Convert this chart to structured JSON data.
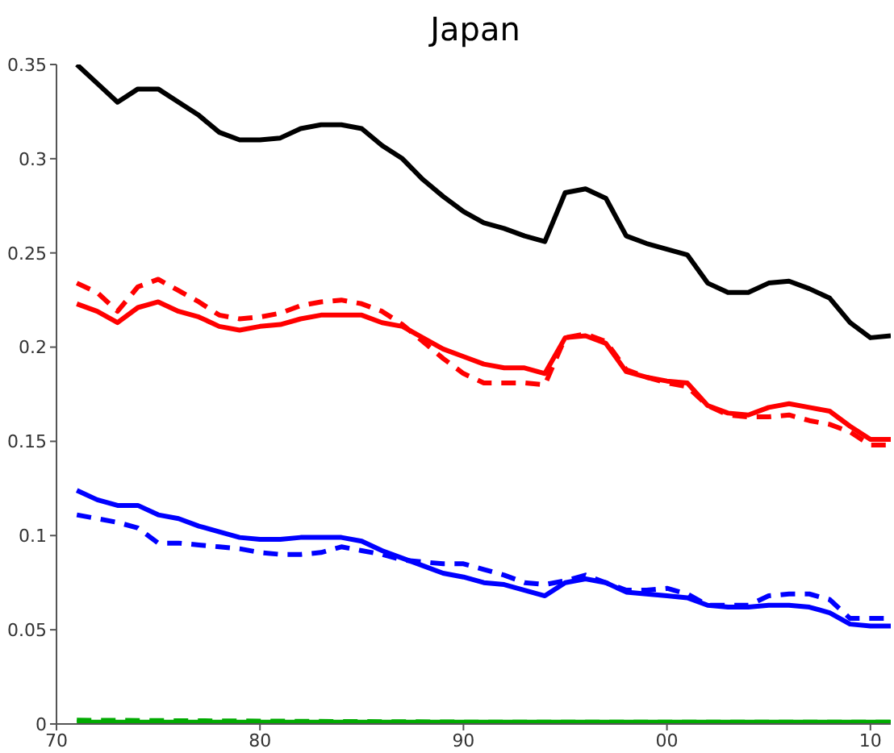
{
  "chart_data": {
    "type": "line",
    "title": "Japan",
    "x": [
      1971,
      1972,
      1973,
      1974,
      1975,
      1976,
      1977,
      1978,
      1979,
      1980,
      1981,
      1982,
      1983,
      1984,
      1985,
      1986,
      1987,
      1988,
      1989,
      1990,
      1991,
      1992,
      1993,
      1994,
      1995,
      1996,
      1997,
      1998,
      1999,
      2000,
      2001,
      2002,
      2003,
      2004,
      2005,
      2006,
      2007,
      2008,
      2009,
      2010,
      2011
    ],
    "series": [
      {
        "color": "#000000",
        "line_style": "solid",
        "values": [
          0.35,
          0.34,
          0.33,
          0.337,
          0.337,
          0.33,
          0.323,
          0.314,
          0.31,
          0.31,
          0.311,
          0.316,
          0.318,
          0.318,
          0.316,
          0.307,
          0.3,
          0.289,
          0.28,
          0.272,
          0.266,
          0.263,
          0.259,
          0.256,
          0.282,
          0.284,
          0.279,
          0.259,
          0.255,
          0.252,
          0.249,
          0.234,
          0.229,
          0.229,
          0.234,
          0.235,
          0.231,
          0.226,
          0.213,
          0.205,
          0.206
        ]
      },
      {
        "color": "#ff0000",
        "line_style": "solid",
        "values": [
          0.223,
          0.219,
          0.213,
          0.221,
          0.224,
          0.219,
          0.216,
          0.211,
          0.209,
          0.211,
          0.212,
          0.215,
          0.217,
          0.217,
          0.217,
          0.213,
          0.211,
          0.205,
          0.199,
          0.195,
          0.191,
          0.189,
          0.189,
          0.186,
          0.205,
          0.206,
          0.202,
          0.187,
          0.184,
          0.182,
          0.181,
          0.169,
          0.165,
          0.164,
          0.168,
          0.17,
          0.168,
          0.166,
          0.158,
          0.151,
          0.151
        ]
      },
      {
        "color": "#ff0000",
        "line_style": "dashed",
        "values": [
          0.234,
          0.229,
          0.219,
          0.232,
          0.236,
          0.23,
          0.224,
          0.217,
          0.215,
          0.216,
          0.218,
          0.222,
          0.224,
          0.225,
          0.223,
          0.219,
          0.212,
          0.203,
          0.194,
          0.186,
          0.181,
          0.181,
          0.181,
          0.18,
          0.205,
          0.207,
          0.203,
          0.188,
          0.184,
          0.181,
          0.179,
          0.169,
          0.164,
          0.163,
          0.163,
          0.164,
          0.161,
          0.159,
          0.155,
          0.148,
          0.148
        ]
      },
      {
        "color": "#0000ff",
        "line_style": "solid",
        "values": [
          0.124,
          0.119,
          0.116,
          0.116,
          0.111,
          0.109,
          0.105,
          0.102,
          0.099,
          0.098,
          0.098,
          0.099,
          0.099,
          0.099,
          0.097,
          0.092,
          0.088,
          0.084,
          0.08,
          0.078,
          0.075,
          0.074,
          0.071,
          0.068,
          0.075,
          0.077,
          0.075,
          0.07,
          0.069,
          0.068,
          0.067,
          0.063,
          0.062,
          0.062,
          0.063,
          0.063,
          0.062,
          0.059,
          0.053,
          0.052,
          0.052
        ]
      },
      {
        "color": "#0000ff",
        "line_style": "dashed",
        "values": [
          0.111,
          0.109,
          0.107,
          0.104,
          0.096,
          0.096,
          0.095,
          0.094,
          0.093,
          0.091,
          0.09,
          0.09,
          0.091,
          0.094,
          0.092,
          0.09,
          0.087,
          0.086,
          0.085,
          0.085,
          0.082,
          0.079,
          0.075,
          0.074,
          0.076,
          0.079,
          0.075,
          0.071,
          0.071,
          0.072,
          0.069,
          0.063,
          0.063,
          0.063,
          0.068,
          0.069,
          0.069,
          0.066,
          0.056,
          0.056,
          0.056
        ]
      },
      {
        "color": "#00aa00",
        "line_style": "solid",
        "x": [
          1971,
          2011
        ],
        "values": [
          0.001,
          0.001
        ]
      },
      {
        "color": "#00aa00",
        "line_style": "dashed",
        "x": [
          1971,
          1990,
          2011
        ],
        "values": [
          0.002,
          0.001,
          0.001
        ]
      }
    ],
    "xlim": [
      1970,
      2011
    ],
    "xticks": [
      {
        "value": 1970,
        "label": "70"
      },
      {
        "value": 1980,
        "label": "80"
      },
      {
        "value": 1990,
        "label": "90"
      },
      {
        "value": 2000,
        "label": "00"
      },
      {
        "value": 2010,
        "label": "10"
      }
    ],
    "ylim": [
      0,
      0.35
    ],
    "yticks": [
      0,
      0.05,
      0.1,
      0.15,
      0.2,
      0.25,
      0.3,
      0.35
    ],
    "grid": false,
    "legend": false,
    "marker": "none"
  }
}
